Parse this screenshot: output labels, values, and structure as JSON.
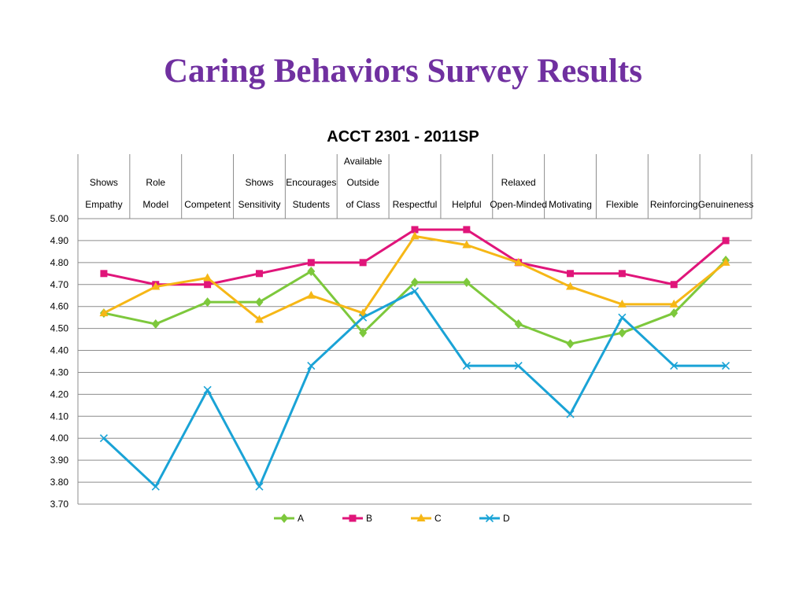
{
  "slide": {
    "title": "Caring Behaviors Survey Results"
  },
  "chart_data": {
    "type": "line",
    "title": "ACCT 2301 - 2011SP",
    "categories": [
      [
        "Shows",
        "Empathy"
      ],
      [
        "Role",
        "Model"
      ],
      [
        "Competent"
      ],
      [
        "Shows",
        "Sensitivity"
      ],
      [
        "Encourages",
        "Students"
      ],
      [
        "Available",
        "Outside",
        "of Class"
      ],
      [
        "Respectful"
      ],
      [
        "Helpful"
      ],
      [
        "Relaxed",
        "Open-Minded"
      ],
      [
        "Motivating"
      ],
      [
        "Flexible"
      ],
      [
        "Reinforcing"
      ],
      [
        "Genuineness"
      ]
    ],
    "y_ticks": [
      "3.70",
      "3.80",
      "3.90",
      "4.00",
      "4.10",
      "4.20",
      "4.30",
      "4.40",
      "4.50",
      "4.60",
      "4.70",
      "4.80",
      "4.90",
      "5.00"
    ],
    "ylim": [
      3.7,
      5.0
    ],
    "grid": true,
    "legend_position": "bottom",
    "series": [
      {
        "name": "A",
        "color": "#7dc83c",
        "marker": "diamond",
        "values": [
          4.57,
          4.52,
          4.62,
          4.62,
          4.76,
          4.48,
          4.71,
          4.71,
          4.52,
          4.43,
          4.48,
          4.57,
          4.81
        ]
      },
      {
        "name": "B",
        "color": "#e0157a",
        "marker": "square",
        "values": [
          4.75,
          4.7,
          4.7,
          4.75,
          4.8,
          4.8,
          4.95,
          4.95,
          4.8,
          4.75,
          4.75,
          4.7,
          4.9
        ]
      },
      {
        "name": "C",
        "color": "#f6b716",
        "marker": "triangle",
        "values": [
          4.57,
          4.69,
          4.73,
          4.54,
          4.65,
          4.57,
          4.92,
          4.88,
          4.8,
          4.69,
          4.61,
          4.61,
          4.8
        ]
      },
      {
        "name": "D",
        "color": "#1aa3d6",
        "marker": "x",
        "values": [
          4.0,
          3.78,
          4.22,
          3.78,
          4.33,
          4.55,
          4.67,
          4.33,
          4.33,
          4.11,
          4.55,
          4.33,
          4.33
        ]
      }
    ]
  }
}
